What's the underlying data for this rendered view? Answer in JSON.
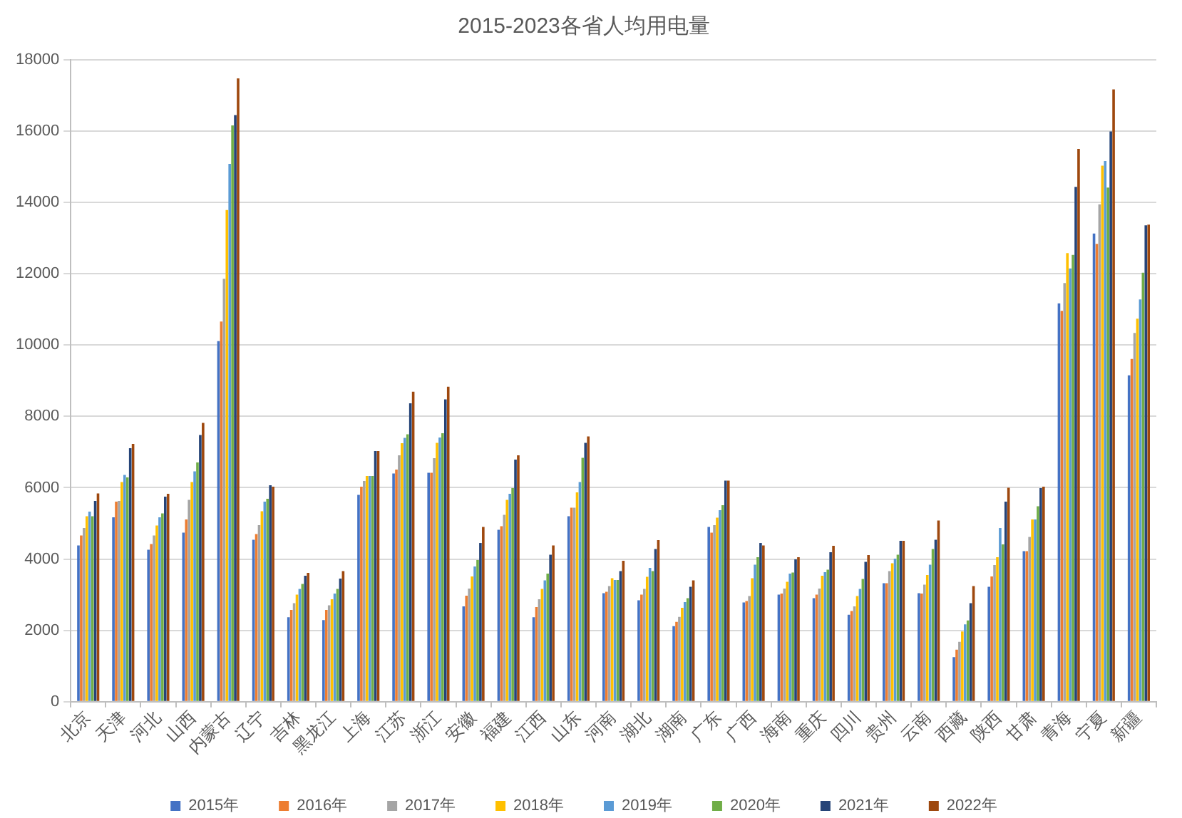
{
  "chart_data": {
    "type": "bar",
    "title": "2015-2023各省人均用电量",
    "categories": [
      "北京",
      "天津",
      "河北",
      "山西",
      "内蒙古",
      "辽宁",
      "吉林",
      "黑龙江",
      "上海",
      "江苏",
      "浙江",
      "安徽",
      "福建",
      "江西",
      "山东",
      "河南",
      "湖北",
      "湖南",
      "广东",
      "广西",
      "海南",
      "重庆",
      "四川",
      "贵州",
      "云南",
      "西藏",
      "陕西",
      "甘肃",
      "青海",
      "宁夏",
      "新疆"
    ],
    "series": [
      {
        "name": "2015年",
        "color": "#4472c4",
        "values": [
          4380,
          5170,
          4260,
          4740,
          10110,
          4540,
          2370,
          2290,
          5800,
          6400,
          6420,
          2670,
          4820,
          2370,
          5200,
          3040,
          2840,
          2120,
          4900,
          2780,
          3000,
          2900,
          2440,
          3320,
          3040,
          1250,
          3220,
          4220,
          11170,
          13130,
          9150
        ]
      },
      {
        "name": "2016年",
        "color": "#ed7d31",
        "values": [
          4660,
          5610,
          4420,
          5110,
          10660,
          4700,
          2570,
          2570,
          6030,
          6510,
          6420,
          2970,
          4920,
          2650,
          5440,
          3080,
          3000,
          2240,
          4740,
          2820,
          3030,
          3000,
          2540,
          3320,
          3030,
          1460,
          3510,
          4220,
          10960,
          12840,
          9610
        ]
      },
      {
        "name": "2017年",
        "color": "#a5a5a5",
        "values": [
          4870,
          5630,
          4660,
          5660,
          11860,
          4950,
          2760,
          2700,
          6190,
          6910,
          6830,
          3170,
          5240,
          2870,
          5440,
          3240,
          3160,
          2380,
          4950,
          2960,
          3170,
          3170,
          2670,
          3660,
          3280,
          1680,
          3830,
          4620,
          11740,
          13950,
          10340
        ]
      },
      {
        "name": "2018年",
        "color": "#ffc000",
        "values": [
          5200,
          6160,
          4940,
          6160,
          13790,
          5340,
          3000,
          2870,
          6330,
          7250,
          7260,
          3510,
          5660,
          3160,
          5870,
          3460,
          3500,
          2630,
          5160,
          3460,
          3360,
          3530,
          2960,
          3880,
          3550,
          1970,
          4050,
          5110,
          12580,
          15030,
          10740
        ]
      },
      {
        "name": "2019年",
        "color": "#5b9bd5",
        "values": [
          5330,
          6360,
          5170,
          6460,
          15080,
          5610,
          3160,
          3030,
          6330,
          7400,
          7410,
          3790,
          5830,
          3400,
          6160,
          3410,
          3750,
          2790,
          5370,
          3840,
          3590,
          3630,
          3160,
          4010,
          3840,
          2170,
          4870,
          5110,
          12150,
          15160,
          11280
        ]
      },
      {
        "name": "2020年",
        "color": "#70ad47",
        "values": [
          5200,
          6290,
          5280,
          6710,
          16160,
          5690,
          3300,
          3160,
          6330,
          7500,
          7530,
          3970,
          5990,
          3590,
          6840,
          3410,
          3660,
          2900,
          5510,
          4050,
          3620,
          3700,
          3440,
          4120,
          4280,
          2280,
          4410,
          5480,
          12530,
          14420,
          12030
        ]
      },
      {
        "name": "2021年",
        "color": "#264478",
        "values": [
          5630,
          7110,
          5750,
          7480,
          16450,
          6070,
          3530,
          3450,
          7030,
          8370,
          8480,
          4450,
          6790,
          4120,
          7260,
          3660,
          4280,
          3220,
          6200,
          4450,
          3990,
          4190,
          3920,
          4510,
          4540,
          2760,
          5610,
          5990,
          14440,
          15990,
          13360
        ]
      },
      {
        "name": "2022年",
        "color": "#9e480e",
        "values": [
          5840,
          7230,
          5830,
          7820,
          17480,
          6030,
          3610,
          3660,
          7030,
          8690,
          8830,
          4900,
          6910,
          4380,
          7440,
          3950,
          4530,
          3400,
          6200,
          4380,
          4050,
          4370,
          4110,
          4510,
          5080,
          3240,
          6000,
          6030,
          15500,
          17170,
          13380
        ]
      }
    ],
    "ylim": [
      0,
      18000
    ],
    "yticks": [
      0,
      2000,
      4000,
      6000,
      8000,
      10000,
      12000,
      14000,
      16000,
      18000
    ],
    "grid": "y",
    "legend": "bottom"
  }
}
